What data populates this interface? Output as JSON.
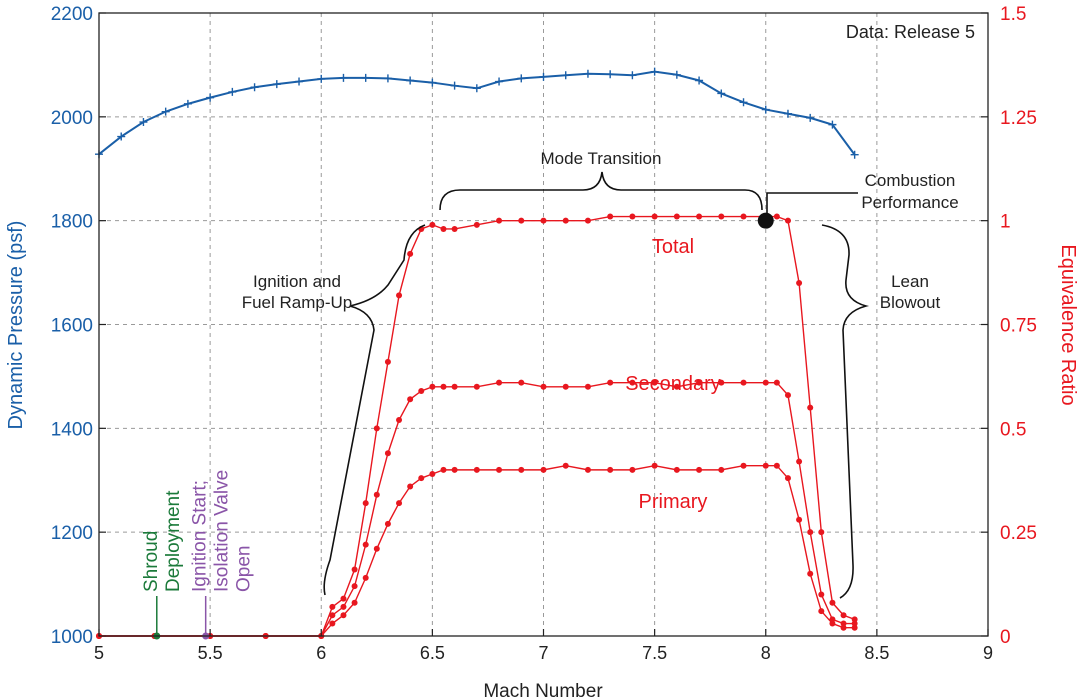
{
  "chart_data": {
    "type": "line",
    "x": [
      5,
      5.25,
      5.5,
      5.75,
      6,
      6.05,
      6.1,
      6.15,
      6.2,
      6.25,
      6.3,
      6.35,
      6.4,
      6.45,
      6.5,
      6.55,
      6.6,
      6.7,
      6.8,
      6.9,
      7,
      7.1,
      7.2,
      7.3,
      7.4,
      7.5,
      7.6,
      7.7,
      7.8,
      7.9,
      8,
      8.05,
      8.1,
      8.15,
      8.2,
      8.25,
      8.3,
      8.35,
      8.4
    ],
    "series": [
      {
        "name": "Total",
        "axis": "right",
        "label": "Total",
        "color": "#e8171f",
        "values": [
          0,
          0,
          0,
          0,
          0,
          0.07,
          0.09,
          0.16,
          0.32,
          0.5,
          0.66,
          0.82,
          0.92,
          0.98,
          0.99,
          0.98,
          0.98,
          0.99,
          1.0,
          1.0,
          1.0,
          1.0,
          1.0,
          1.01,
          1.01,
          1.01,
          1.01,
          1.01,
          1.01,
          1.01,
          1.01,
          1.01,
          1.0,
          0.85,
          0.55,
          0.25,
          0.08,
          0.05,
          0.04
        ]
      },
      {
        "name": "Secondary",
        "axis": "right",
        "label": "Secondary",
        "color": "#e8171f",
        "values": [
          0,
          0,
          0,
          0,
          0,
          0.05,
          0.07,
          0.12,
          0.22,
          0.34,
          0.44,
          0.52,
          0.57,
          0.59,
          0.6,
          0.6,
          0.6,
          0.6,
          0.61,
          0.61,
          0.6,
          0.6,
          0.6,
          0.61,
          0.61,
          0.61,
          0.6,
          0.61,
          0.61,
          0.61,
          0.61,
          0.61,
          0.58,
          0.42,
          0.25,
          0.1,
          0.04,
          0.03,
          0.03
        ]
      },
      {
        "name": "Primary",
        "axis": "right",
        "label": "Primary",
        "color": "#e8171f",
        "values": [
          0,
          0,
          0,
          0,
          0,
          0.03,
          0.05,
          0.08,
          0.14,
          0.21,
          0.27,
          0.32,
          0.36,
          0.38,
          0.39,
          0.4,
          0.4,
          0.4,
          0.4,
          0.4,
          0.4,
          0.41,
          0.4,
          0.4,
          0.4,
          0.41,
          0.4,
          0.4,
          0.4,
          0.41,
          0.41,
          0.41,
          0.38,
          0.28,
          0.15,
          0.06,
          0.03,
          0.02,
          0.02
        ]
      },
      {
        "name": "Dynamic Pressure",
        "axis": "left",
        "color": "#1a5fa8",
        "x": [
          5,
          5.1,
          5.2,
          5.3,
          5.4,
          5.5,
          5.6,
          5.7,
          5.8,
          5.9,
          6,
          6.1,
          6.2,
          6.3,
          6.4,
          6.5,
          6.6,
          6.7,
          6.8,
          6.9,
          7,
          7.1,
          7.2,
          7.3,
          7.4,
          7.5,
          7.6,
          7.7,
          7.8,
          7.9,
          8,
          8.1,
          8.2,
          8.3,
          8.4
        ],
        "values": [
          1928,
          1962,
          1990,
          2010,
          2025,
          2037,
          2048,
          2057,
          2063,
          2068,
          2073,
          2075,
          2075,
          2074,
          2070,
          2066,
          2060,
          2055,
          2068,
          2074,
          2077,
          2080,
          2083,
          2082,
          2080,
          2087,
          2081,
          2070,
          2045,
          2028,
          2014,
          2006,
          1998,
          1985,
          1927
        ]
      }
    ],
    "markers": [
      {
        "name": "Shroud Deployment",
        "x": 5.26,
        "color": "#1b7a3a",
        "lines": [
          "Shroud",
          "Deployment"
        ]
      },
      {
        "name": "Ignition Start; Isolation Valve Open",
        "x": 5.48,
        "color": "#8a55a8",
        "lines": [
          "Ignition Start;",
          "Isolation Valve",
          "Open"
        ]
      }
    ],
    "annotations": {
      "mode_transition": "Mode Transition",
      "combustion_performance": [
        "Combustion",
        "Performance"
      ],
      "ignition_ramp": [
        "Ignition and",
        "Fuel Ramp-Up"
      ],
      "lean_blowout": [
        "Lean",
        "Blowout"
      ],
      "data_release": "Data: Release 5"
    },
    "combustion_point": {
      "x": 8.0,
      "y": 1.0
    },
    "xlabel": "Mach Number",
    "ylabel_left": "Dynamic Pressure (psf)",
    "ylabel_right": "Equivalence Ratio",
    "xlim": [
      5,
      9
    ],
    "ylim_left": [
      1000,
      2200
    ],
    "ylim_right": [
      0,
      1.5
    ],
    "xticks": [
      "5",
      "5.5",
      "6",
      "6.5",
      "7",
      "7.5",
      "8",
      "8.5",
      "9"
    ],
    "yticks_left": [
      "1000",
      "1200",
      "1400",
      "1600",
      "1800",
      "2000",
      "2200"
    ],
    "yticks_right": [
      "0",
      "0.25",
      "0.5",
      "0.75",
      "1",
      "1.25",
      "1.5"
    ],
    "grid": true,
    "colors": {
      "left_axis": "#1a5fa8",
      "right_axis": "#e8171f",
      "annotation": "#222222"
    }
  }
}
